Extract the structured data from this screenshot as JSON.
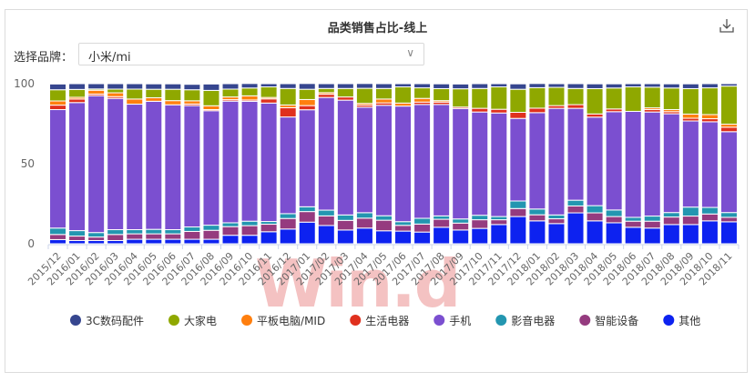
{
  "header": {
    "title": "品类销售占比-线上",
    "download_icon": "download-icon"
  },
  "filter": {
    "label": "选择品牌：",
    "value": "小米/mi"
  },
  "watermark": "Win.d",
  "chart_data": {
    "type": "bar",
    "stacked": true,
    "title": "品类销售占比-线上",
    "xlabel": "",
    "ylabel": "",
    "ylim": [
      0,
      100
    ],
    "yticks": [
      "0",
      "50",
      "100"
    ],
    "grid": false,
    "legend_position": "bottom",
    "categories": [
      "2015/12",
      "2016/01",
      "2016/02",
      "2016/03",
      "2016/04",
      "2016/05",
      "2016/06",
      "2016/07",
      "2016/08",
      "2016/09",
      "2016/10",
      "2016/11",
      "2016/12",
      "2017/01",
      "2017/02",
      "2017/03",
      "2017/04",
      "2017/05",
      "2017/06",
      "2017/07",
      "2017/08",
      "2017/09",
      "2017/10",
      "2017/11",
      "2017/12",
      "2018/01",
      "2018/02",
      "2018/03",
      "2018/04",
      "2018/05",
      "2018/06",
      "2018/07",
      "2018/08",
      "2018/09",
      "2018/10",
      "2018/11"
    ],
    "series": [
      {
        "name": "其他",
        "color": "#0d22f0",
        "values": [
          2.6,
          2,
          2,
          2,
          2.8,
          2.8,
          2.8,
          2.8,
          2.8,
          5.3,
          5.3,
          7.5,
          9.2,
          13.5,
          11.4,
          8.6,
          9.8,
          8.1,
          7.9,
          7.3,
          10.3,
          8.6,
          9.6,
          12,
          17,
          14.3,
          12.6,
          19.3,
          14.3,
          13.1,
          10.3,
          9.8,
          12,
          12,
          14.3,
          13.7
        ]
      },
      {
        "name": "智能设备",
        "color": "#953b7f",
        "values": [
          3.2,
          2.8,
          2.2,
          3.8,
          3.4,
          3.4,
          3.4,
          4.9,
          5.6,
          5.4,
          6,
          4.7,
          6.6,
          6.6,
          6,
          6,
          6.2,
          6.6,
          3.6,
          5,
          5,
          4.3,
          5.4,
          3,
          5,
          3.8,
          3,
          4.3,
          5,
          3.9,
          3.8,
          4.3,
          4.7,
          5.3,
          4.3,
          2.8
        ]
      },
      {
        "name": "影音电器",
        "color": "#2396b0",
        "values": [
          4,
          3.4,
          2.8,
          3,
          2.6,
          2.8,
          2.6,
          2.8,
          3.2,
          2.4,
          2.8,
          1.7,
          3,
          3,
          3.6,
          3.4,
          3.4,
          2.8,
          2.3,
          3.6,
          2.1,
          2.6,
          2.8,
          2,
          4.7,
          3.6,
          2.4,
          3.6,
          4.5,
          4.1,
          2.4,
          3.2,
          2.8,
          5.6,
          4.1,
          3
        ]
      },
      {
        "name": "手机",
        "color": "#7b4fd0",
        "values": [
          74,
          80,
          85.5,
          82,
          78.4,
          80,
          78,
          75.8,
          71.5,
          76,
          74.9,
          74,
          60.4,
          60.6,
          70.4,
          71.7,
          65.9,
          69,
          72.2,
          71.1,
          69.6,
          69,
          64.5,
          64.7,
          51.6,
          60.2,
          66.6,
          57.4,
          55.3,
          61.4,
          66.2,
          65,
          61.7,
          53.8,
          53.5,
          50.5
        ]
      },
      {
        "name": "生活电器",
        "color": "#e0301e",
        "values": [
          2.8,
          2.2,
          1,
          1.1,
          0,
          0,
          0,
          1,
          0.7,
          0.9,
          0.8,
          2.6,
          5.8,
          2.6,
          2,
          2,
          1.3,
          1.5,
          0,
          1.5,
          1.5,
          0.9,
          2.3,
          2.3,
          3.8,
          2.8,
          1.7,
          2.3,
          2,
          1.7,
          0,
          1.5,
          1.3,
          1.7,
          1.9,
          2.8
        ]
      },
      {
        "name": "平板电脑/MID",
        "color": "#ff7f0e",
        "values": [
          2.6,
          1.1,
          2.4,
          2.4,
          3.2,
          2.2,
          2.6,
          2,
          2.4,
          1.7,
          2.6,
          0.9,
          1.7,
          3.8,
          1,
          0,
          1.1,
          2.4,
          1.9,
          2.3,
          0.9,
          0,
          0,
          0,
          0,
          0,
          0,
          0,
          0,
          0,
          0,
          1.1,
          1.3,
          2.6,
          2.6,
          1.9
        ]
      },
      {
        "name": "大家电",
        "color": "#8fa800",
        "values": [
          7,
          4.9,
          0.8,
          2.3,
          6.2,
          5.3,
          7.1,
          6.9,
          9.6,
          4.9,
          4.9,
          6.6,
          10.3,
          6.4,
          2.6,
          5.3,
          9.4,
          6.6,
          10.1,
          6.6,
          7.5,
          11.4,
          12.4,
          14,
          14.4,
          12.8,
          11.4,
          10.1,
          15.8,
          13.1,
          15.3,
          12.9,
          13.5,
          15.9,
          16.7,
          23.8
        ]
      },
      {
        "name": "3C数码配件",
        "color": "#36468f",
        "values": [
          3.6,
          3.6,
          3.3,
          3.4,
          3.4,
          3.4,
          3.4,
          3.4,
          4,
          3.4,
          2.8,
          2,
          3,
          3.6,
          3,
          3,
          3,
          3,
          2,
          2.6,
          3,
          3,
          3,
          2,
          3.4,
          2.6,
          2.3,
          3,
          3,
          2.6,
          2,
          2.2,
          2.6,
          3,
          2.6,
          1.5
        ]
      }
    ],
    "legend": [
      "3C数码配件",
      "大家电",
      "平板电脑/MID",
      "生活电器",
      "手机",
      "影音电器",
      "智能设备",
      "其他"
    ]
  }
}
